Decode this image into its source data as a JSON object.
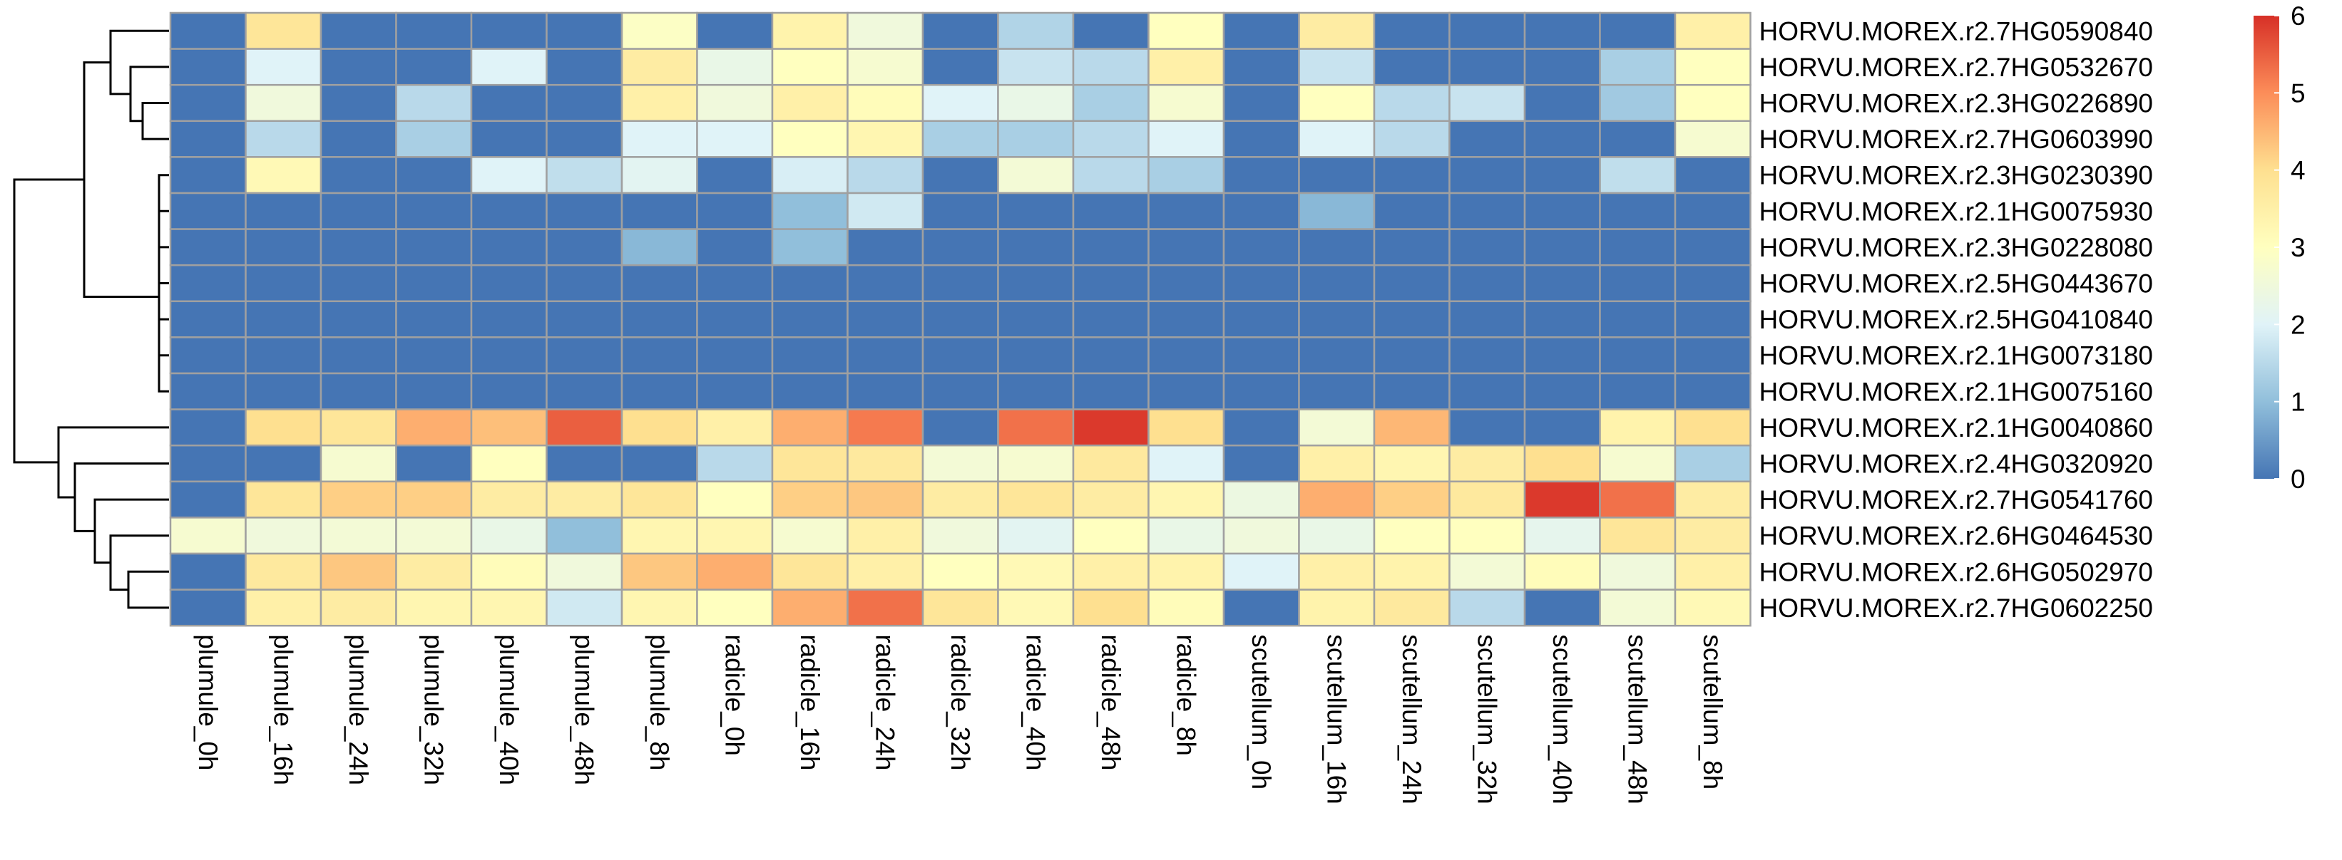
{
  "chart_data": {
    "type": "heatmap",
    "rows": [
      "HORVU.MOREX.r2.7HG0590840",
      "HORVU.MOREX.r2.7HG0532670",
      "HORVU.MOREX.r2.3HG0226890",
      "HORVU.MOREX.r2.7HG0603990",
      "HORVU.MOREX.r2.3HG0230390",
      "HORVU.MOREX.r2.1HG0075930",
      "HORVU.MOREX.r2.3HG0228080",
      "HORVU.MOREX.r2.5HG0443670",
      "HORVU.MOREX.r2.5HG0410840",
      "HORVU.MOREX.r2.1HG0073180",
      "HORVU.MOREX.r2.1HG0075160",
      "HORVU.MOREX.r2.1HG0040860",
      "HORVU.MOREX.r2.4HG0320920",
      "HORVU.MOREX.r2.7HG0541760",
      "HORVU.MOREX.r2.6HG0464530",
      "HORVU.MOREX.r2.6HG0502970",
      "HORVU.MOREX.r2.7HG0602250"
    ],
    "columns": [
      "plumule_0h",
      "plumule_16h",
      "plumule_24h",
      "plumule_32h",
      "plumule_40h",
      "plumule_48h",
      "plumule_8h",
      "radicle_0h",
      "radicle_16h",
      "radicle_24h",
      "radicle_32h",
      "radicle_40h",
      "radicle_48h",
      "radicle_8h",
      "scutellum_0h",
      "scutellum_16h",
      "scutellum_24h",
      "scutellum_32h",
      "scutellum_40h",
      "scutellum_48h",
      "scutellum_8h"
    ],
    "values": [
      [
        0,
        3.8,
        0,
        0,
        0,
        0,
        2.9,
        0,
        3.4,
        2.5,
        0,
        1.4,
        0,
        3.0,
        0,
        3.6,
        0,
        0,
        0,
        0,
        3.5
      ],
      [
        0,
        2.0,
        0,
        0,
        2.0,
        0,
        3.6,
        2.3,
        3.0,
        2.7,
        0,
        1.7,
        1.5,
        3.5,
        0,
        1.7,
        0,
        0,
        0,
        1.3,
        3.0
      ],
      [
        0,
        2.5,
        0,
        1.5,
        0,
        0,
        3.5,
        2.5,
        3.5,
        3.1,
        2.0,
        2.3,
        1.3,
        2.7,
        0,
        3.0,
        1.5,
        1.7,
        0,
        1.2,
        3.0
      ],
      [
        0,
        1.5,
        0,
        1.3,
        0,
        0,
        2.0,
        2.0,
        3.0,
        3.3,
        1.3,
        1.3,
        1.5,
        2.0,
        0,
        2.0,
        1.5,
        0,
        0,
        0,
        2.7
      ],
      [
        0,
        3.2,
        0,
        0,
        2.0,
        1.6,
        2.1,
        0,
        1.9,
        1.5,
        0,
        2.6,
        1.5,
        1.3,
        0,
        0,
        0,
        0,
        0,
        1.6,
        0
      ],
      [
        0,
        0,
        0,
        0,
        0,
        0,
        0,
        0,
        1.0,
        1.8,
        0,
        0,
        0,
        0,
        0,
        0.9,
        0,
        0,
        0,
        0,
        0
      ],
      [
        0,
        0,
        0,
        0,
        0,
        0,
        0.9,
        0,
        1.0,
        0,
        0,
        0,
        0,
        0,
        0,
        0,
        0,
        0,
        0,
        0,
        0
      ],
      [
        0,
        0,
        0,
        0,
        0,
        0,
        0,
        0,
        0,
        0,
        0,
        0,
        0,
        0,
        0,
        0,
        0,
        0,
        0,
        0,
        0
      ],
      [
        0,
        0,
        0,
        0,
        0,
        0,
        0,
        0,
        0,
        0,
        0,
        0,
        0,
        0,
        0,
        0,
        0,
        0,
        0,
        0,
        0
      ],
      [
        0,
        0,
        0,
        0,
        0,
        0,
        0,
        0,
        0,
        0,
        0,
        0,
        0,
        0,
        0,
        0,
        0,
        0,
        0,
        0,
        0
      ],
      [
        0,
        0,
        0,
        0,
        0,
        0,
        0,
        0,
        0,
        0,
        0,
        0,
        0,
        0,
        0,
        0,
        0,
        0,
        0,
        0,
        0
      ],
      [
        0,
        4.0,
        3.8,
        4.6,
        4.4,
        5.5,
        4.0,
        3.5,
        4.6,
        5.2,
        0,
        5.3,
        5.9,
        4.0,
        0,
        2.6,
        4.5,
        0,
        0,
        3.4,
        4.0
      ],
      [
        0,
        0,
        2.7,
        0,
        3.0,
        0,
        0,
        1.5,
        3.8,
        3.7,
        2.6,
        2.7,
        3.7,
        2.0,
        0,
        3.5,
        3.3,
        3.6,
        4.0,
        2.7,
        1.3
      ],
      [
        0,
        3.8,
        4.2,
        4.2,
        3.6,
        3.6,
        3.8,
        3.0,
        4.2,
        4.3,
        3.6,
        3.8,
        3.6,
        3.3,
        2.4,
        4.6,
        4.2,
        3.7,
        5.9,
        5.3,
        3.6
      ],
      [
        2.7,
        2.5,
        2.6,
        2.6,
        2.3,
        1.0,
        3.3,
        3.3,
        2.7,
        3.5,
        2.5,
        2.1,
        3.0,
        2.3,
        2.5,
        2.3,
        3.0,
        3.0,
        2.2,
        3.8,
        3.6
      ],
      [
        0,
        3.7,
        4.3,
        3.6,
        3.1,
        2.5,
        4.3,
        4.6,
        3.8,
        3.5,
        3.0,
        3.2,
        3.5,
        3.4,
        2.0,
        3.5,
        3.4,
        2.6,
        3.1,
        2.5,
        3.5
      ],
      [
        0,
        3.5,
        3.6,
        3.3,
        3.3,
        1.8,
        3.3,
        3.0,
        4.6,
        5.3,
        3.8,
        3.2,
        4.0,
        3.1,
        0,
        3.4,
        3.7,
        1.5,
        0,
        2.6,
        3.2
      ]
    ],
    "color_scale": {
      "min": 0,
      "max": 6,
      "stops": [
        "#4575b4",
        "#91bfdb",
        "#e0f3f8",
        "#ffffbf",
        "#fee090",
        "#fc8d59",
        "#d73027"
      ]
    },
    "legend_ticks": [
      "0",
      "1",
      "2",
      "3",
      "4",
      "5",
      "6"
    ],
    "legend_placement": "right",
    "row_dendrogram": true,
    "cell_border_color": "#a0a0a0"
  }
}
